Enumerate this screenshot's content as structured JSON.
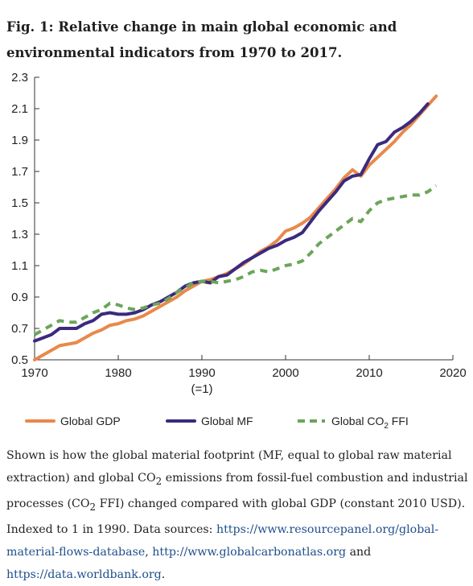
{
  "figure": {
    "title": "Fig. 1: Relative change in main global economic and environmental indicators from 1970 to 2017."
  },
  "chart_data": {
    "type": "line",
    "xlim": [
      1970,
      2020
    ],
    "ylim": [
      0.5,
      2.3
    ],
    "x_ticks": [
      {
        "value": 1970,
        "label": "1970",
        "sublabel": ""
      },
      {
        "value": 1980,
        "label": "1980",
        "sublabel": ""
      },
      {
        "value": 1990,
        "label": "1990",
        "sublabel": "(=1)"
      },
      {
        "value": 2000,
        "label": "2000",
        "sublabel": ""
      },
      {
        "value": 2010,
        "label": "2010",
        "sublabel": ""
      },
      {
        "value": 2020,
        "label": "2020",
        "sublabel": ""
      }
    ],
    "y_ticks": [
      {
        "value": 0.5,
        "label": "0.5"
      },
      {
        "value": 0.7,
        "label": "0.7"
      },
      {
        "value": 0.9,
        "label": "0.9"
      },
      {
        "value": 1.1,
        "label": "1.1"
      },
      {
        "value": 1.3,
        "label": "1.3"
      },
      {
        "value": 1.5,
        "label": "1.5"
      },
      {
        "value": 1.7,
        "label": "1.7"
      },
      {
        "value": 1.9,
        "label": "1.9"
      },
      {
        "value": 2.1,
        "label": "2.1"
      },
      {
        "value": 2.3,
        "label": "2.3"
      }
    ],
    "grid": false,
    "legend": "bottom",
    "series": [
      {
        "name": "Global GDP",
        "color": "#e8894a",
        "dash": "solid",
        "x": [
          1970,
          1971,
          1972,
          1973,
          1974,
          1975,
          1976,
          1977,
          1978,
          1979,
          1980,
          1981,
          1982,
          1983,
          1984,
          1985,
          1986,
          1987,
          1988,
          1989,
          1990,
          1991,
          1992,
          1993,
          1994,
          1995,
          1996,
          1997,
          1998,
          1999,
          2000,
          2001,
          2002,
          2003,
          2004,
          2005,
          2006,
          2007,
          2008,
          2009,
          2010,
          2011,
          2012,
          2013,
          2014,
          2015,
          2016,
          2017,
          2018
        ],
        "y": [
          0.5,
          0.53,
          0.56,
          0.59,
          0.6,
          0.61,
          0.64,
          0.67,
          0.69,
          0.72,
          0.73,
          0.75,
          0.76,
          0.78,
          0.81,
          0.84,
          0.87,
          0.9,
          0.94,
          0.97,
          1.0,
          1.01,
          1.03,
          1.05,
          1.08,
          1.11,
          1.15,
          1.19,
          1.22,
          1.26,
          1.32,
          1.34,
          1.37,
          1.41,
          1.47,
          1.53,
          1.59,
          1.66,
          1.71,
          1.67,
          1.74,
          1.79,
          1.84,
          1.89,
          1.95,
          2.0,
          2.06,
          2.12,
          2.18
        ]
      },
      {
        "name": "Global MF",
        "color": "#3b2a7e",
        "dash": "solid",
        "x": [
          1970,
          1971,
          1972,
          1973,
          1974,
          1975,
          1976,
          1977,
          1978,
          1979,
          1980,
          1981,
          1982,
          1983,
          1984,
          1985,
          1986,
          1987,
          1988,
          1989,
          1990,
          1991,
          1992,
          1993,
          1994,
          1995,
          1996,
          1997,
          1998,
          1999,
          2000,
          2001,
          2002,
          2003,
          2004,
          2005,
          2006,
          2007,
          2008,
          2009,
          2010,
          2011,
          2012,
          2013,
          2014,
          2015,
          2016,
          2017
        ],
        "y": [
          0.62,
          0.64,
          0.66,
          0.7,
          0.7,
          0.7,
          0.73,
          0.75,
          0.79,
          0.8,
          0.79,
          0.79,
          0.8,
          0.82,
          0.85,
          0.87,
          0.9,
          0.93,
          0.97,
          0.99,
          1.0,
          0.99,
          1.03,
          1.04,
          1.08,
          1.12,
          1.15,
          1.18,
          1.21,
          1.23,
          1.26,
          1.28,
          1.31,
          1.38,
          1.45,
          1.51,
          1.57,
          1.64,
          1.67,
          1.68,
          1.78,
          1.87,
          1.89,
          1.95,
          1.98,
          2.02,
          2.07,
          2.13
        ]
      },
      {
        "name": "Global CO₂ FFI",
        "legend_base": "Global CO",
        "legend_sub": "2",
        "legend_rest": " FFI",
        "color": "#6ba559",
        "dash": "dashed",
        "x": [
          1970,
          1971,
          1972,
          1973,
          1974,
          1975,
          1976,
          1977,
          1978,
          1979,
          1980,
          1981,
          1982,
          1983,
          1984,
          1985,
          1986,
          1987,
          1988,
          1989,
          1990,
          1991,
          1992,
          1993,
          1994,
          1995,
          1996,
          1997,
          1998,
          1999,
          2000,
          2001,
          2002,
          2003,
          2004,
          2005,
          2006,
          2007,
          2008,
          2009,
          2010,
          2011,
          2012,
          2013,
          2014,
          2015,
          2016,
          2017,
          2018
        ],
        "y": [
          0.66,
          0.69,
          0.72,
          0.75,
          0.74,
          0.74,
          0.77,
          0.8,
          0.82,
          0.86,
          0.85,
          0.83,
          0.82,
          0.83,
          0.85,
          0.86,
          0.89,
          0.93,
          0.96,
          0.99,
          1.0,
          1.0,
          0.99,
          1.0,
          1.01,
          1.03,
          1.06,
          1.07,
          1.06,
          1.08,
          1.1,
          1.11,
          1.13,
          1.18,
          1.24,
          1.28,
          1.32,
          1.36,
          1.4,
          1.38,
          1.45,
          1.5,
          1.52,
          1.53,
          1.54,
          1.55,
          1.55,
          1.57,
          1.61
        ]
      }
    ]
  },
  "caption": {
    "p1": "Shown is how the global material footprint (MF, equal to global raw material extraction) and global CO",
    "p1_sub": "2",
    "p2": " emissions from fossil-fuel combustion and industrial processes (CO",
    "p2_sub": "2",
    "p3": " FFI) changed compared with global GDP (constant 2010 USD). Indexed to 1 in 1990. Data sources: ",
    "link1": "https://www.resourcepanel.org/global-material-flows-database",
    "sep1": ",",
    "link2": "http://www.globalcarbonatlas.org",
    "and": " and ",
    "link3": "https://data.worldbank.org",
    "end": "."
  }
}
